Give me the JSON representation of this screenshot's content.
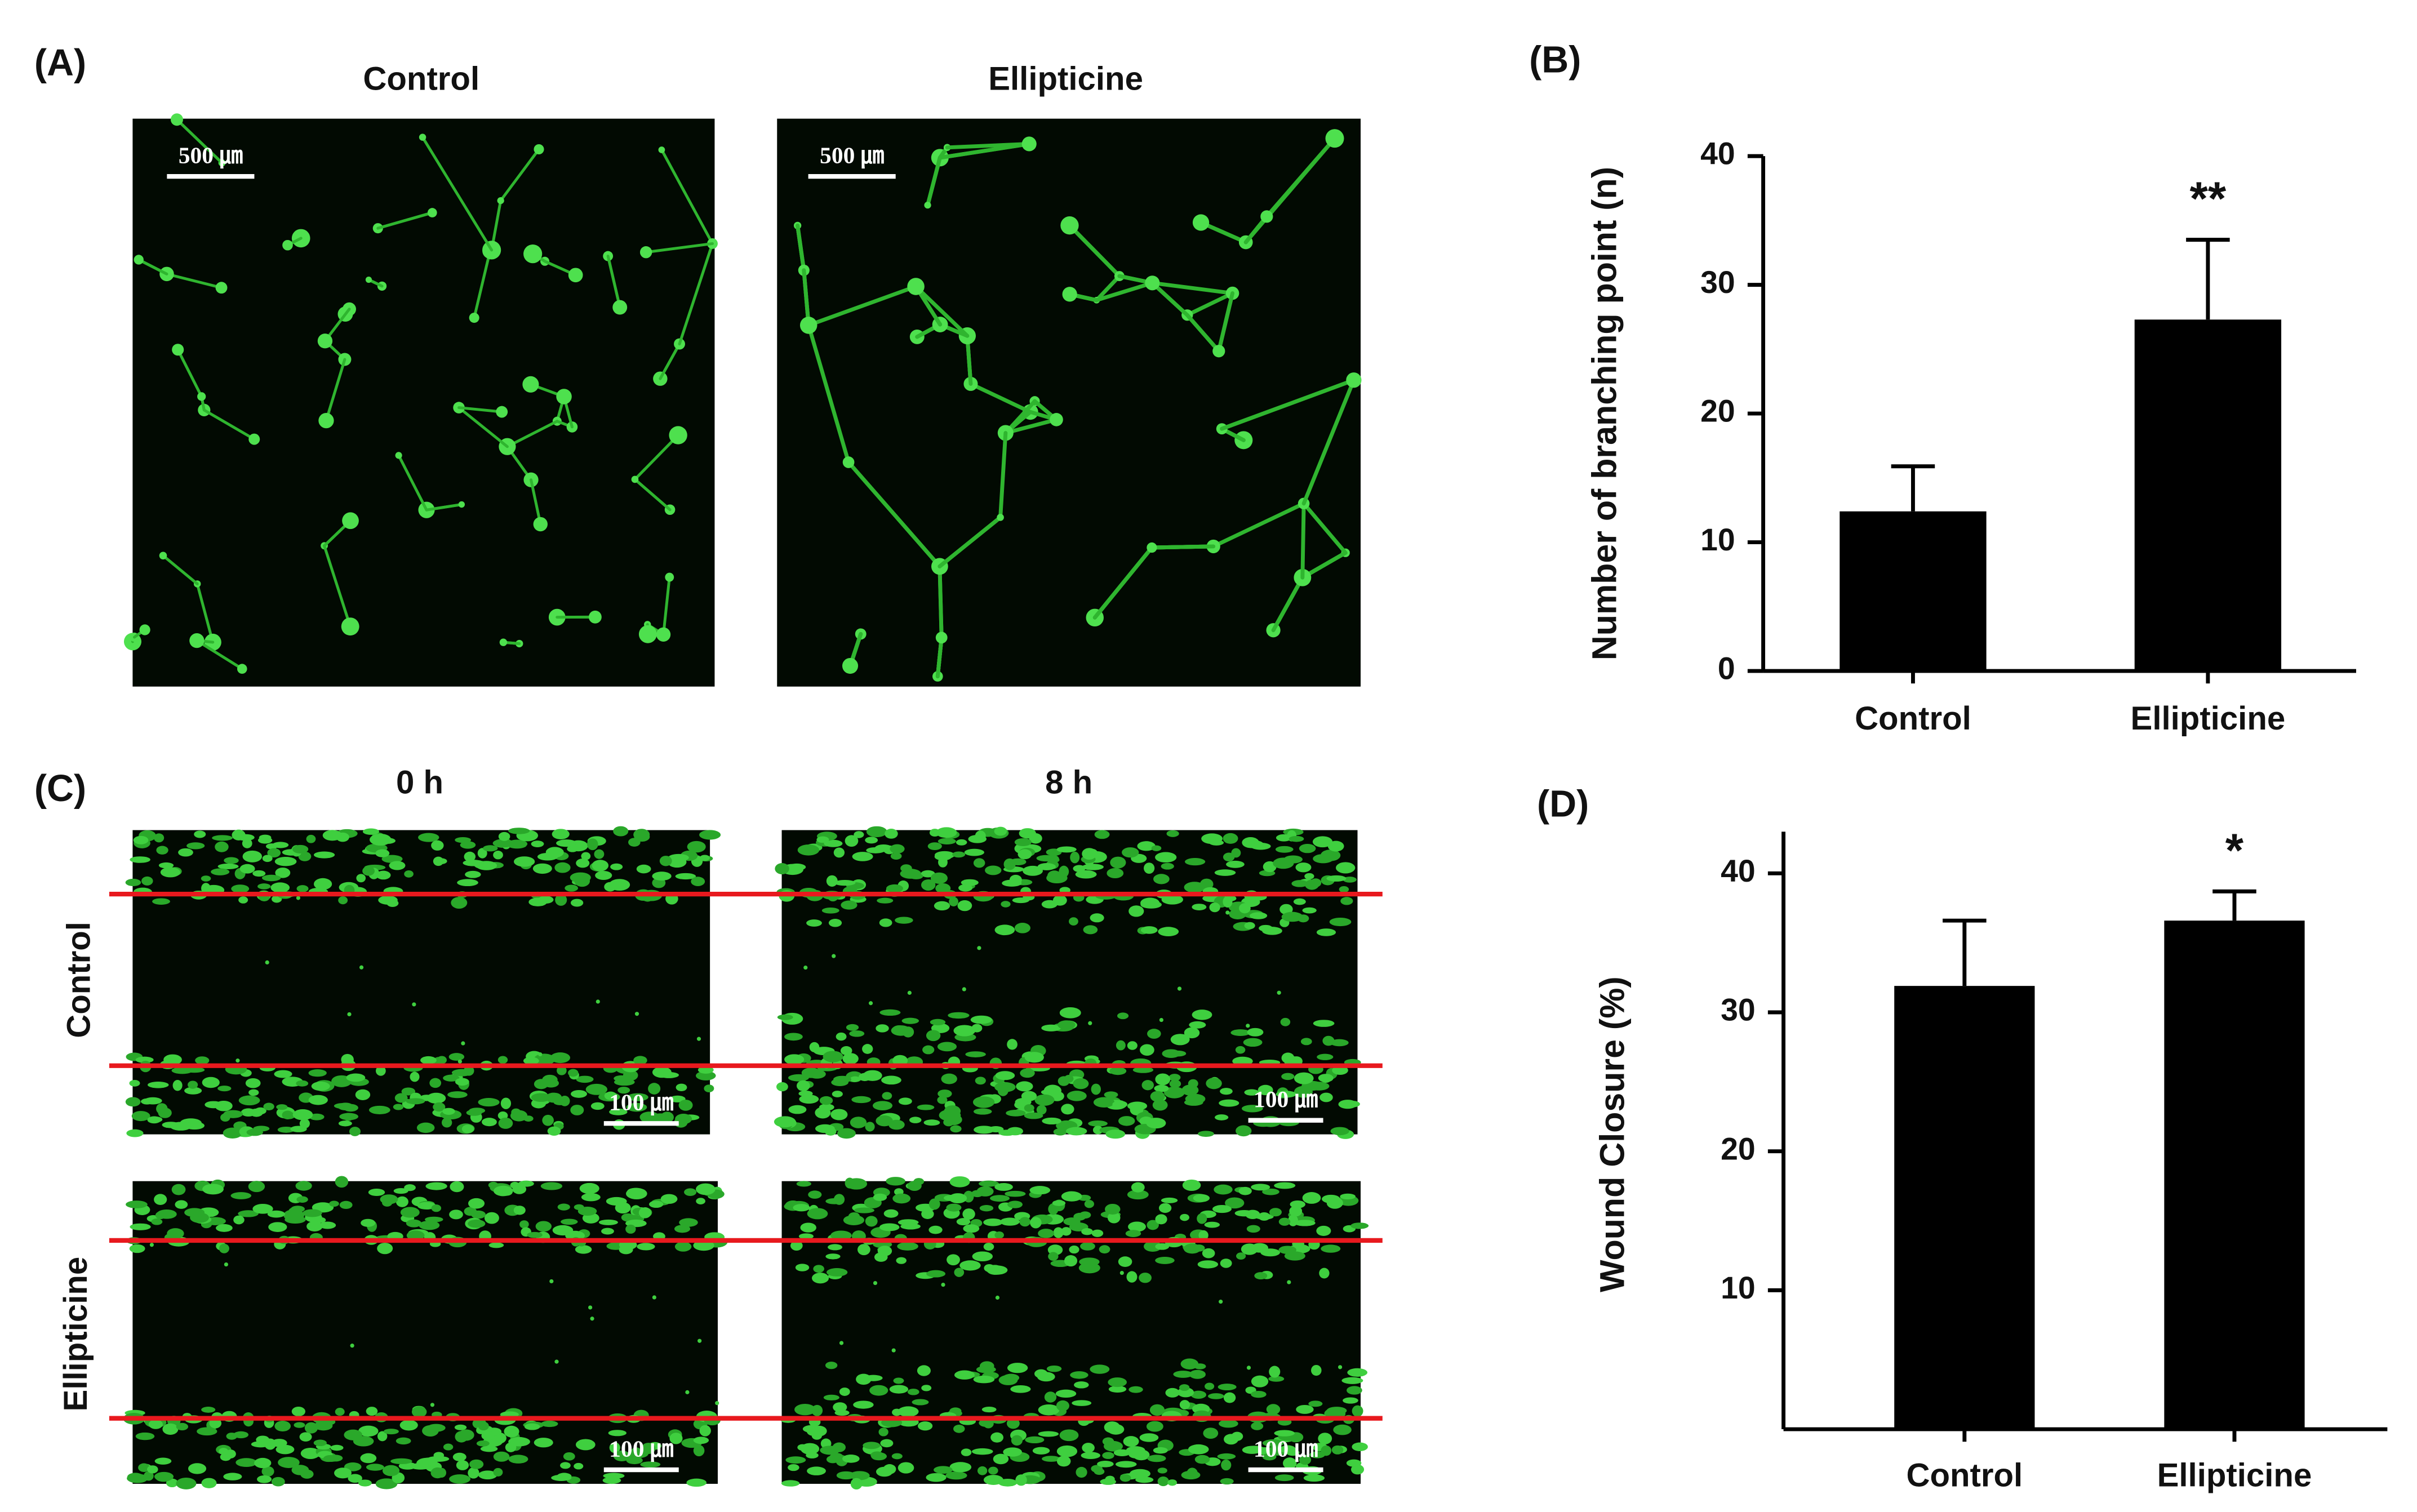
{
  "figure": {
    "panel_a": {
      "label": "(A)",
      "titles": [
        "Control",
        "Ellipticine"
      ],
      "scale_bars": [
        "500 ㎛",
        "500 ㎛"
      ]
    },
    "panel_c": {
      "label": "(C)",
      "titles": [
        "0 h",
        "8 h"
      ],
      "rows": [
        "Control",
        "Ellipticine"
      ],
      "scale_bars": [
        "100 ㎛",
        "100 ㎛",
        "100 ㎛",
        "100 ㎛"
      ]
    }
  },
  "chart_data": [
    {
      "type": "bar",
      "label": "(B)",
      "y_label": "Number of branching point (n)",
      "categories": [
        "Control",
        "Ellipticine"
      ],
      "values": [
        12.4,
        27.3
      ],
      "errors": [
        3.5,
        6.2
      ],
      "color": "#000000",
      "ylim": [
        0,
        40
      ],
      "yticks": [
        0,
        10,
        20,
        30,
        40
      ],
      "annotations": [
        null,
        "**"
      ]
    },
    {
      "type": "bar",
      "label": "(D)",
      "y_label": "Wound Closure (%)",
      "categories": [
        "Control",
        "Ellipticine"
      ],
      "values": [
        31.9,
        36.6
      ],
      "errors": [
        4.7,
        2.1
      ],
      "color": "#000000",
      "ylim": [
        0,
        43
      ],
      "yticks": [
        10,
        20,
        30,
        40
      ],
      "annotations": [
        null,
        "*"
      ]
    }
  ]
}
